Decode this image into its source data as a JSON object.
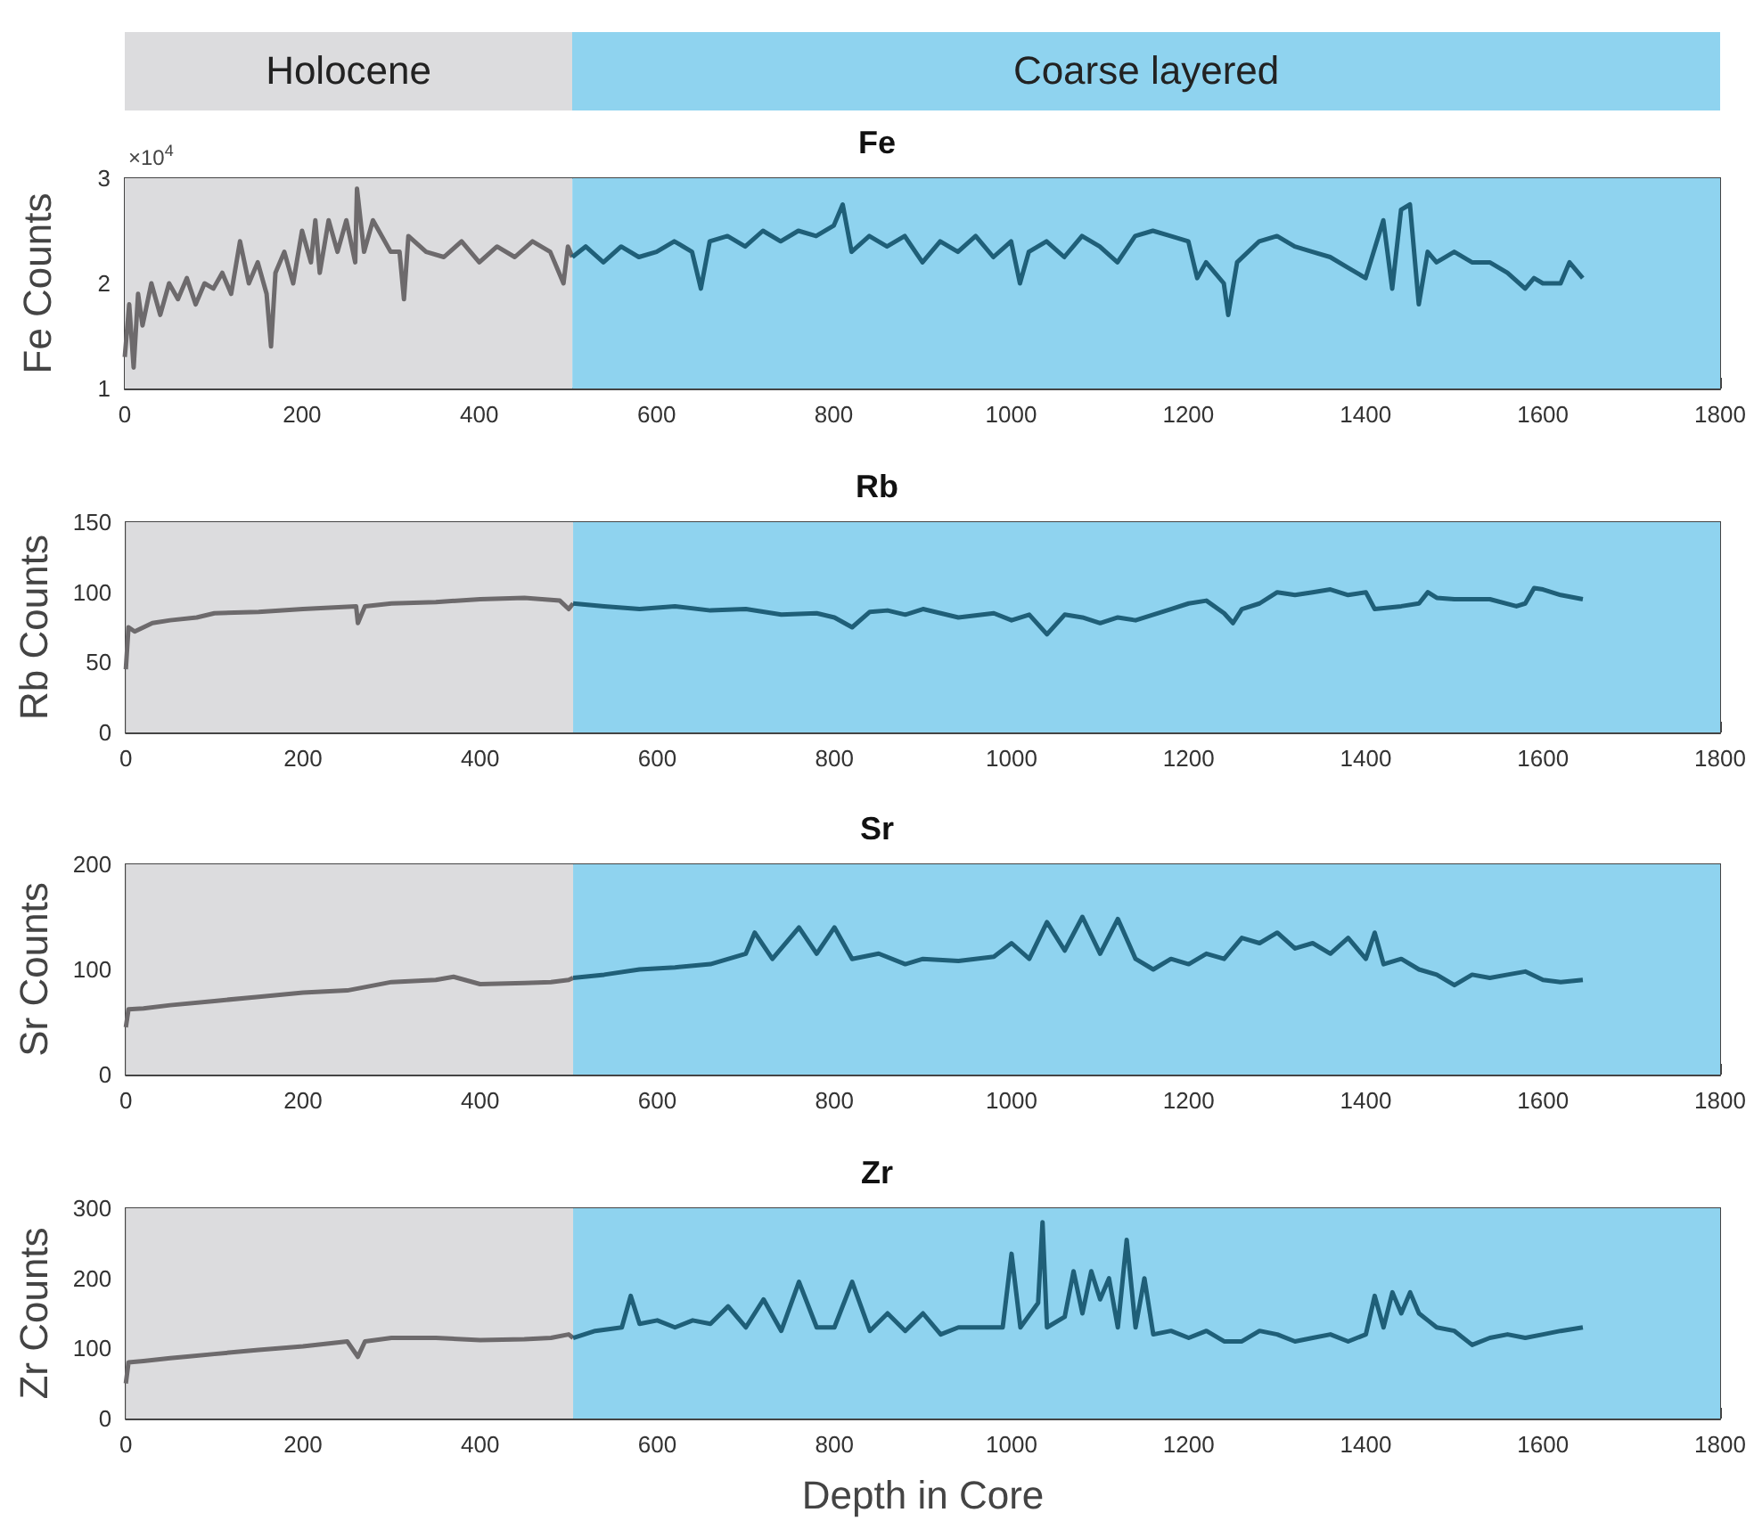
{
  "chart_data": [
    {
      "type": "line",
      "title": "Fe",
      "ylabel": "Fe Counts",
      "annotations": [
        "×10$^{4}$"
      ],
      "xlim": [
        0,
        1800
      ],
      "xticks": [
        0,
        200,
        400,
        600,
        800,
        1000,
        1200,
        1400,
        1600,
        1800
      ],
      "ylim": [
        1,
        3
      ],
      "yticks": [
        1,
        2,
        3
      ],
      "bands": [
        {
          "axis": "x",
          "from": 0,
          "to": 505,
          "label": "Holocene",
          "color": "#dcdcde"
        },
        {
          "axis": "x",
          "from": 505,
          "to": 1800,
          "label": "Coarse layered",
          "color": "#8fd3ef"
        }
      ],
      "series": [
        {
          "color": "#6d6a6c",
          "x": [
            0,
            5,
            10,
            15,
            20,
            30,
            40,
            50,
            60,
            70,
            80,
            90,
            100,
            110,
            120,
            130,
            140,
            150,
            160,
            165,
            170,
            180,
            190,
            200,
            210,
            215,
            220,
            230,
            240,
            250,
            260,
            262,
            270,
            280,
            300,
            310,
            315,
            320,
            340,
            360,
            380,
            400,
            420,
            440,
            460,
            480,
            495,
            500,
            505
          ],
          "values": [
            1.3,
            1.8,
            1.2,
            1.9,
            1.6,
            2.0,
            1.7,
            2.0,
            1.85,
            2.05,
            1.8,
            2.0,
            1.95,
            2.1,
            1.9,
            2.4,
            2.0,
            2.2,
            1.9,
            1.4,
            2.1,
            2.3,
            2.0,
            2.5,
            2.2,
            2.6,
            2.1,
            2.6,
            2.3,
            2.6,
            2.2,
            2.9,
            2.3,
            2.6,
            2.3,
            2.3,
            1.85,
            2.45,
            2.3,
            2.25,
            2.4,
            2.2,
            2.35,
            2.25,
            2.4,
            2.3,
            2.0,
            2.35,
            2.25
          ]
        },
        {
          "color": "#1f5f78",
          "x": [
            505,
            520,
            540,
            560,
            580,
            600,
            620,
            640,
            650,
            660,
            680,
            700,
            720,
            740,
            760,
            780,
            800,
            810,
            820,
            840,
            860,
            880,
            900,
            920,
            940,
            960,
            980,
            1000,
            1010,
            1020,
            1040,
            1060,
            1080,
            1100,
            1120,
            1140,
            1160,
            1180,
            1200,
            1210,
            1220,
            1240,
            1245,
            1255,
            1280,
            1300,
            1320,
            1340,
            1360,
            1380,
            1400,
            1420,
            1430,
            1440,
            1450,
            1460,
            1470,
            1480,
            1500,
            1520,
            1540,
            1560,
            1580,
            1590,
            1600,
            1620,
            1630,
            1645
          ],
          "values": [
            2.25,
            2.35,
            2.2,
            2.35,
            2.25,
            2.3,
            2.4,
            2.3,
            1.95,
            2.4,
            2.45,
            2.35,
            2.5,
            2.4,
            2.5,
            2.45,
            2.55,
            2.75,
            2.3,
            2.45,
            2.35,
            2.45,
            2.2,
            2.4,
            2.3,
            2.45,
            2.25,
            2.4,
            2.0,
            2.3,
            2.4,
            2.25,
            2.45,
            2.35,
            2.2,
            2.45,
            2.5,
            2.45,
            2.4,
            2.05,
            2.2,
            2.0,
            1.7,
            2.2,
            2.4,
            2.45,
            2.35,
            2.3,
            2.25,
            2.15,
            2.05,
            2.6,
            1.95,
            2.7,
            2.75,
            1.8,
            2.3,
            2.2,
            2.3,
            2.2,
            2.2,
            2.1,
            1.95,
            2.05,
            2.0,
            2.0,
            2.2,
            2.05
          ]
        }
      ]
    },
    {
      "type": "line",
      "title": "Rb",
      "ylabel": "Rb Counts",
      "xlim": [
        0,
        1800
      ],
      "xticks": [
        0,
        200,
        400,
        600,
        800,
        1000,
        1200,
        1400,
        1600,
        1800
      ],
      "ylim": [
        0,
        150
      ],
      "yticks": [
        0,
        50,
        100,
        150
      ],
      "bands": [
        {
          "axis": "x",
          "from": 0,
          "to": 505,
          "color": "#dcdcde"
        },
        {
          "axis": "x",
          "from": 505,
          "to": 1800,
          "color": "#8fd3ef"
        }
      ],
      "series": [
        {
          "color": "#6d6a6c",
          "x": [
            0,
            3,
            10,
            30,
            50,
            80,
            100,
            150,
            200,
            260,
            262,
            270,
            300,
            350,
            400,
            450,
            490,
            500,
            505
          ],
          "values": [
            45,
            75,
            72,
            78,
            80,
            82,
            85,
            86,
            88,
            90,
            78,
            90,
            92,
            93,
            95,
            96,
            94,
            88,
            92
          ]
        },
        {
          "color": "#1f5f78",
          "x": [
            505,
            540,
            580,
            620,
            660,
            700,
            740,
            780,
            800,
            820,
            840,
            860,
            880,
            900,
            940,
            980,
            1000,
            1020,
            1040,
            1060,
            1080,
            1100,
            1120,
            1140,
            1160,
            1180,
            1200,
            1220,
            1240,
            1250,
            1260,
            1280,
            1300,
            1320,
            1340,
            1360,
            1380,
            1400,
            1410,
            1440,
            1460,
            1470,
            1480,
            1500,
            1540,
            1570,
            1580,
            1590,
            1600,
            1620,
            1645
          ],
          "values": [
            92,
            90,
            88,
            90,
            87,
            88,
            84,
            85,
            82,
            75,
            86,
            87,
            84,
            88,
            82,
            85,
            80,
            84,
            70,
            84,
            82,
            78,
            82,
            80,
            84,
            88,
            92,
            94,
            85,
            78,
            88,
            92,
            100,
            98,
            100,
            102,
            98,
            100,
            88,
            90,
            92,
            100,
            96,
            95,
            95,
            90,
            92,
            103,
            102,
            98,
            95
          ]
        }
      ]
    },
    {
      "type": "line",
      "title": "Sr",
      "ylabel": "Sr Counts",
      "xlim": [
        0,
        1800
      ],
      "xticks": [
        0,
        200,
        400,
        600,
        800,
        1000,
        1200,
        1400,
        1600,
        1800
      ],
      "ylim": [
        0,
        200
      ],
      "yticks": [
        0,
        100,
        200
      ],
      "bands": [
        {
          "axis": "x",
          "from": 0,
          "to": 505,
          "color": "#dcdcde"
        },
        {
          "axis": "x",
          "from": 505,
          "to": 1800,
          "color": "#8fd3ef"
        }
      ],
      "series": [
        {
          "color": "#6d6a6c",
          "x": [
            0,
            3,
            20,
            50,
            100,
            150,
            200,
            250,
            300,
            350,
            370,
            400,
            450,
            480,
            500,
            505
          ],
          "values": [
            45,
            62,
            63,
            66,
            70,
            74,
            78,
            80,
            88,
            90,
            93,
            86,
            87,
            88,
            90,
            92
          ]
        },
        {
          "color": "#1f5f78",
          "x": [
            505,
            540,
            580,
            620,
            660,
            700,
            710,
            730,
            760,
            780,
            800,
            820,
            850,
            880,
            900,
            940,
            980,
            1000,
            1020,
            1040,
            1060,
            1080,
            1100,
            1120,
            1140,
            1160,
            1180,
            1200,
            1220,
            1240,
            1260,
            1280,
            1300,
            1320,
            1340,
            1360,
            1380,
            1400,
            1410,
            1420,
            1440,
            1460,
            1480,
            1500,
            1520,
            1540,
            1560,
            1580,
            1600,
            1620,
            1645
          ],
          "values": [
            92,
            95,
            100,
            102,
            105,
            115,
            135,
            110,
            140,
            115,
            140,
            110,
            115,
            105,
            110,
            108,
            112,
            125,
            110,
            145,
            118,
            150,
            115,
            148,
            110,
            100,
            110,
            105,
            115,
            110,
            130,
            125,
            135,
            120,
            125,
            115,
            130,
            110,
            135,
            105,
            110,
            100,
            95,
            85,
            95,
            92,
            95,
            98,
            90,
            88,
            90
          ]
        }
      ]
    },
    {
      "type": "line",
      "title": "Zr",
      "ylabel": "Zr Counts",
      "xlabel": "Depth in Core",
      "xlim": [
        0,
        1800
      ],
      "xticks": [
        0,
        200,
        400,
        600,
        800,
        1000,
        1200,
        1400,
        1600,
        1800
      ],
      "ylim": [
        0,
        300
      ],
      "yticks": [
        0,
        100,
        200,
        300
      ],
      "bands": [
        {
          "axis": "x",
          "from": 0,
          "to": 505,
          "color": "#dcdcde"
        },
        {
          "axis": "x",
          "from": 505,
          "to": 1800,
          "color": "#8fd3ef"
        }
      ],
      "series": [
        {
          "color": "#6d6a6c",
          "x": [
            0,
            3,
            20,
            50,
            100,
            150,
            200,
            250,
            262,
            270,
            300,
            350,
            400,
            450,
            480,
            500,
            505
          ],
          "values": [
            50,
            80,
            82,
            86,
            92,
            98,
            103,
            110,
            88,
            110,
            115,
            115,
            112,
            113,
            115,
            120,
            115
          ]
        },
        {
          "color": "#1f5f78",
          "x": [
            505,
            530,
            560,
            570,
            580,
            600,
            620,
            640,
            660,
            680,
            700,
            720,
            740,
            760,
            780,
            800,
            820,
            840,
            860,
            880,
            900,
            920,
            940,
            960,
            990,
            1000,
            1010,
            1030,
            1035,
            1040,
            1060,
            1070,
            1080,
            1090,
            1100,
            1110,
            1120,
            1130,
            1140,
            1150,
            1160,
            1180,
            1200,
            1220,
            1240,
            1260,
            1280,
            1300,
            1320,
            1340,
            1360,
            1380,
            1400,
            1410,
            1420,
            1430,
            1440,
            1450,
            1460,
            1470,
            1480,
            1500,
            1520,
            1540,
            1560,
            1580,
            1600,
            1620,
            1645
          ],
          "values": [
            115,
            125,
            130,
            175,
            135,
            140,
            130,
            140,
            135,
            160,
            130,
            170,
            125,
            195,
            130,
            130,
            195,
            125,
            150,
            125,
            150,
            120,
            130,
            130,
            130,
            235,
            130,
            165,
            280,
            130,
            145,
            210,
            150,
            210,
            170,
            200,
            130,
            255,
            130,
            200,
            120,
            125,
            115,
            125,
            110,
            110,
            125,
            120,
            110,
            115,
            120,
            110,
            120,
            175,
            130,
            180,
            150,
            180,
            150,
            140,
            130,
            125,
            105,
            115,
            120,
            115,
            120,
            125,
            130
          ]
        }
      ]
    }
  ]
}
